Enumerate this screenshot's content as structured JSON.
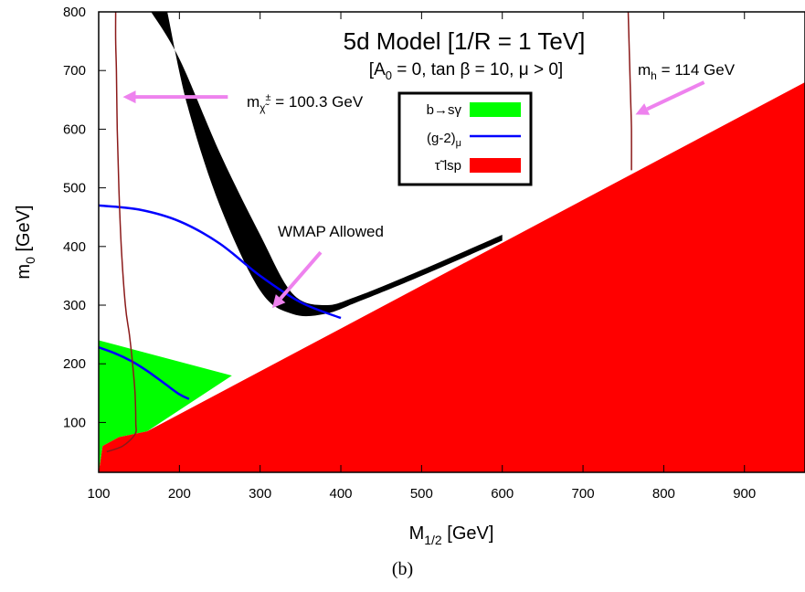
{
  "chart_data": {
    "type": "area",
    "title": "5d Model [1/R = 1 TeV]",
    "subtitle": {
      "lead": "[A",
      "sub": "0",
      "rest": " = 0, tan β = 10, μ > 0]"
    },
    "xlabel": {
      "main": "M",
      "sub": "1/2",
      "rest": " [GeV]"
    },
    "ylabel": {
      "main": "m",
      "sub": "0",
      "rest": " [GeV]"
    },
    "xlim": [
      100,
      975
    ],
    "ylim": [
      15,
      800
    ],
    "xticks": [
      "100",
      "200",
      "300",
      "400",
      "500",
      "600",
      "700",
      "800",
      "900"
    ],
    "yticks": [
      "100",
      "200",
      "300",
      "400",
      "500",
      "600",
      "700",
      "800"
    ],
    "grid": false,
    "legend_position": "top-center",
    "legend": [
      {
        "label": "b→sγ",
        "color": "#00ff00",
        "style": "box"
      },
      {
        "label_main": "(g-2)",
        "label_sub": "μ",
        "color": "#0000ff",
        "style": "line"
      },
      {
        "label_main": "τ̃",
        "label_rest": " lsp",
        "color": "#ff0000",
        "style": "box"
      }
    ],
    "colors": {
      "wmap": "#000000",
      "higgs": "#8b1a1a",
      "arrow": "#ee82ee"
    },
    "annotations": {
      "chargino": {
        "main": "m",
        "sub": "χ̃",
        "sup": "±",
        "rest": " = 100.3 GeV"
      },
      "higgs": {
        "main": "m",
        "sub": "h",
        "rest": " = 114 GeV"
      },
      "wmap": "WMAP Allowed"
    },
    "series": [
      {
        "name": "τ̃ lsp",
        "kind": "region",
        "x": [
          100,
          105,
          125,
          160,
          975,
          975,
          100
        ],
        "y": [
          15,
          60,
          75,
          85,
          680,
          15,
          15
        ]
      },
      {
        "name": "b→sγ",
        "kind": "region",
        "x": [
          100,
          100,
          265,
          160,
          125,
          105
        ],
        "y": [
          15,
          240,
          180,
          85,
          75,
          60
        ]
      },
      {
        "name": "(g-2)μ",
        "kind": "line",
        "x": [
          100,
          150,
          200,
          250,
          300,
          350,
          400
        ],
        "y": [
          470,
          463,
          443,
          405,
          350,
          305,
          278
        ]
      },
      {
        "name": "(g-2)μ lower",
        "kind": "line",
        "x": [
          100,
          120,
          140,
          160,
          180,
          200,
          212
        ],
        "y": [
          228,
          218,
          205,
          188,
          168,
          148,
          140
        ]
      },
      {
        "name": "WMAP band upper",
        "kind": "band-edge",
        "x": [
          165,
          200,
          250,
          300,
          340,
          380,
          420,
          500,
          600
        ],
        "y": [
          800,
          720,
          560,
          420,
          320,
          300,
          315,
          360,
          420
        ]
      },
      {
        "name": "WMAP band lower",
        "kind": "band-edge",
        "x": [
          600,
          500,
          420,
          380,
          340,
          300,
          250,
          210,
          185
        ],
        "y": [
          410,
          350,
          305,
          285,
          285,
          325,
          470,
          640,
          800
        ]
      },
      {
        "name": "m_χ̃± = 100.3 GeV",
        "kind": "contour",
        "x": [
          121,
          121,
          122,
          123,
          125,
          128,
          133,
          138,
          142,
          145,
          146,
          145,
          130,
          110
        ],
        "y": [
          800,
          750,
          700,
          600,
          500,
          400,
          300,
          250,
          200,
          150,
          100,
          80,
          60,
          50
        ]
      },
      {
        "name": "m_h = 114 GeV",
        "kind": "contour",
        "x": [
          756,
          757,
          758,
          759,
          760,
          760
        ],
        "y": [
          800,
          750,
          700,
          650,
          600,
          530
        ]
      },
      {
        "name": "chargino arrow",
        "kind": "arrow",
        "x": [
          260,
          130
        ],
        "y": [
          655,
          655
        ]
      },
      {
        "name": "higgs arrow",
        "kind": "arrow",
        "x": [
          850,
          765
        ],
        "y": [
          680,
          625
        ]
      },
      {
        "name": "wmap arrow",
        "kind": "arrow",
        "x": [
          375,
          315
        ],
        "y": [
          390,
          295
        ]
      }
    ]
  },
  "caption": "(b)"
}
